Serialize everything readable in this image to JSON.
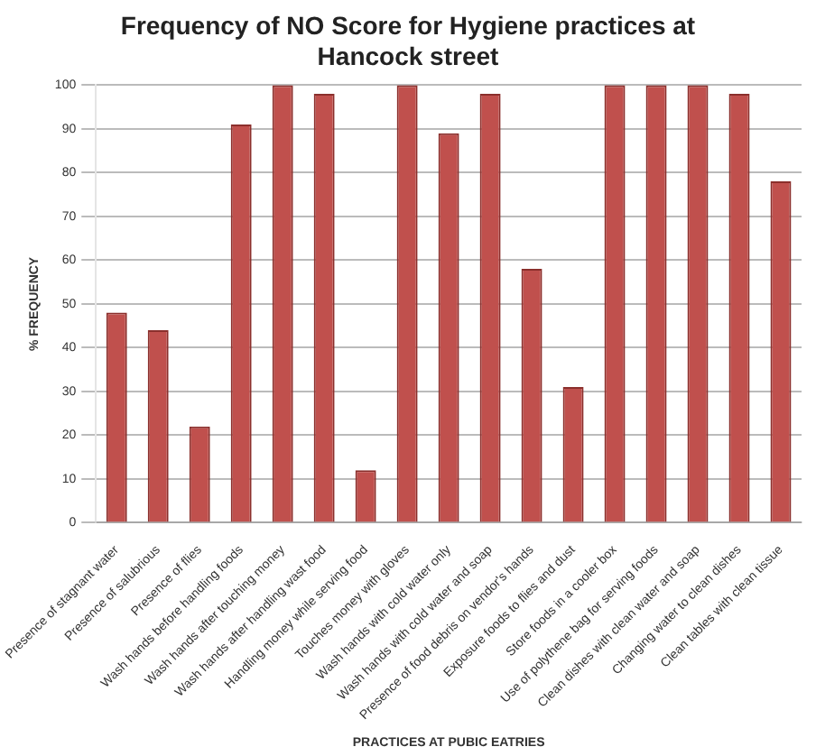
{
  "chart_data": {
    "type": "bar",
    "title": "Frequency of NO Score for Hygiene practices at Hancock street",
    "xlabel": "PRACTICES AT PUBIC EATRIES",
    "ylabel": "% FREQUENCY",
    "categories": [
      "Presence of stagnant water",
      "Presence of salubrious",
      "Presence of flies",
      "Wash hands before handling foods",
      "Wash hands after touching money",
      "Wash hands after handling wast food",
      "Handling money while serving food",
      "Touches money with gloves",
      "Wash hands with cold water only",
      "Wash hands with cold water and soap",
      "Presence of food debris on vendor's hands",
      "Exposure foods to flies and dust",
      "Store foods in a cooler box",
      "Use of polythene bag for serving foods",
      "Clean dishes with clean water and soap",
      "Changing water to clean dishes",
      "Clean tables with clean tissue"
    ],
    "values": [
      48,
      44,
      22,
      91,
      100,
      98,
      12,
      100,
      89,
      98,
      58,
      31,
      100,
      100,
      100,
      98,
      78
    ],
    "color": "#c0504d",
    "ylim": [
      0,
      100
    ],
    "yticks": [
      0,
      10,
      20,
      30,
      40,
      50,
      60,
      70,
      80,
      90,
      100
    ],
    "grid": "y",
    "legend": false
  }
}
